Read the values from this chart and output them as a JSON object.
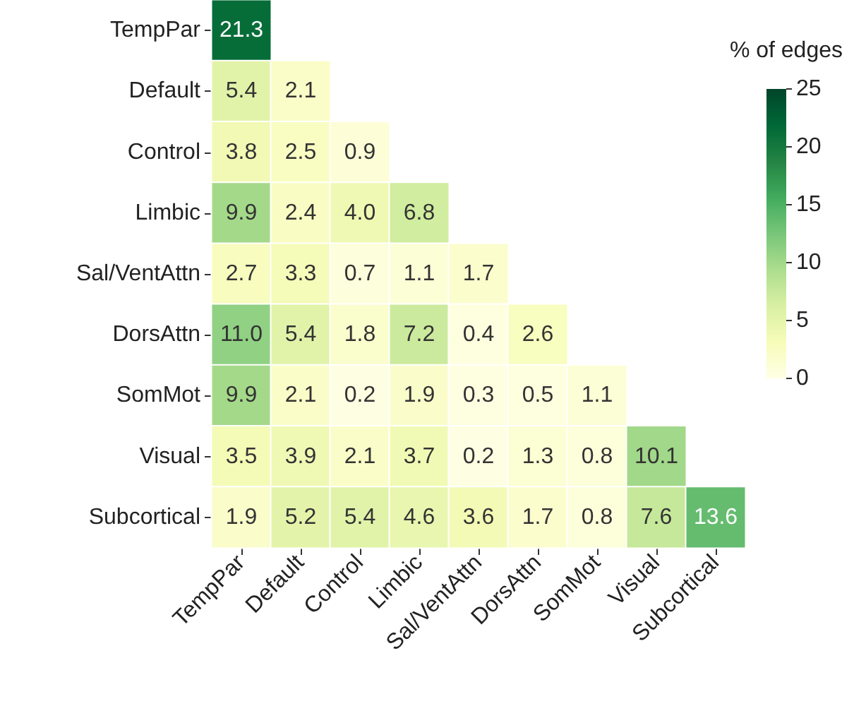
{
  "chart_data": {
    "type": "heatmap",
    "categories": [
      "TempPar",
      "Default",
      "Control",
      "Limbic",
      "Sal/VentAttn",
      "DorsAttn",
      "SomMot",
      "Visual",
      "Subcortical"
    ],
    "y_categories": [
      "TempPar",
      "Default",
      "Control",
      "Limbic",
      "Sal/VentAttn",
      "DorsAttn",
      "SomMot",
      "Visual",
      "Subcortical"
    ],
    "cells": [
      [
        21.3,
        null,
        null,
        null,
        null,
        null,
        null,
        null,
        null
      ],
      [
        5.4,
        2.1,
        null,
        null,
        null,
        null,
        null,
        null,
        null
      ],
      [
        3.8,
        2.5,
        0.9,
        null,
        null,
        null,
        null,
        null,
        null
      ],
      [
        9.9,
        2.4,
        4.0,
        6.8,
        null,
        null,
        null,
        null,
        null
      ],
      [
        2.7,
        3.3,
        0.7,
        1.1,
        1.7,
        null,
        null,
        null,
        null
      ],
      [
        11.0,
        5.4,
        1.8,
        7.2,
        0.4,
        2.6,
        null,
        null,
        null
      ],
      [
        9.9,
        2.1,
        0.2,
        1.9,
        0.3,
        0.5,
        1.1,
        null,
        null
      ],
      [
        3.5,
        3.9,
        2.1,
        3.7,
        0.2,
        1.3,
        0.8,
        10.1,
        null
      ],
      [
        1.9,
        5.2,
        5.4,
        4.6,
        3.6,
        1.7,
        0.8,
        7.6,
        13.6
      ]
    ],
    "cell_labels": [
      [
        "21.3",
        null,
        null,
        null,
        null,
        null,
        null,
        null,
        null
      ],
      [
        "5.4",
        "2.1",
        null,
        null,
        null,
        null,
        null,
        null,
        null
      ],
      [
        "3.8",
        "2.5",
        "0.9",
        null,
        null,
        null,
        null,
        null,
        null
      ],
      [
        "9.9",
        "2.4",
        "4.0",
        "6.8",
        null,
        null,
        null,
        null,
        null
      ],
      [
        "2.7",
        "3.3",
        "0.7",
        "1.1",
        "1.7",
        null,
        null,
        null,
        null
      ],
      [
        "11.0",
        "5.4",
        "1.8",
        "7.2",
        "0.4",
        "2.6",
        null,
        null,
        null
      ],
      [
        "9.9",
        "2.1",
        "0.2",
        "1.9",
        "0.3",
        "0.5",
        "1.1",
        null,
        null
      ],
      [
        "3.5",
        "3.9",
        "2.1",
        "3.7",
        "0.2",
        "1.3",
        "0.8",
        "10.1",
        null
      ],
      [
        "1.9",
        "5.2",
        "5.4",
        "4.6",
        "3.6",
        "1.7",
        "0.8",
        "7.6",
        "13.6"
      ]
    ],
    "clabel": "% of edges",
    "clim": [
      0,
      25
    ],
    "cticks": [
      0,
      5,
      10,
      15,
      20,
      25
    ]
  }
}
